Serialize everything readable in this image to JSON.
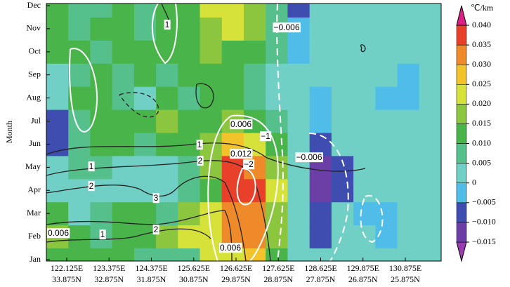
{
  "chart_data": {
    "type": "heatmap",
    "y_label": "Month",
    "y_categories": [
      "Jan",
      "Feb",
      "Mar",
      "Apr",
      "May",
      "Jun",
      "Jul",
      "Aug",
      "Sep",
      "Oct",
      "Nov",
      "Dec"
    ],
    "x_labels": [
      [
        "122.125E",
        "33.875N"
      ],
      [
        "123.375E",
        "32.875N"
      ],
      [
        "124.375E",
        "31.875N"
      ],
      [
        "125.625E",
        "30.875N"
      ],
      [
        "126.625E",
        "29.875N"
      ],
      [
        "127.625E",
        "28.875N"
      ],
      [
        "128.625E",
        "27.875N"
      ],
      [
        "129.875E",
        "26.875N"
      ],
      [
        "130.875E",
        "25.875N"
      ]
    ],
    "values": [
      [
        0.012,
        0.012,
        0.012,
        0.012,
        0.007,
        0.007,
        0.007,
        0.022,
        0.022,
        0.027,
        0.012,
        0.003,
        0.003,
        0.003,
        0.003,
        0.003,
        0.003,
        0.003
      ],
      [
        0.017,
        0.012,
        0.007,
        0.012,
        0.012,
        0.017,
        0.022,
        0.022,
        0.032,
        0.032,
        0.017,
        0.003,
        -0.007,
        0.003,
        0.003,
        -0.002,
        0.003,
        0.003
      ],
      [
        0.012,
        0.003,
        0.007,
        0.012,
        0.012,
        0.007,
        0.017,
        0.022,
        0.032,
        0.032,
        0.017,
        0.003,
        -0.007,
        0.003,
        -0.002,
        -0.002,
        0.003,
        0.003
      ],
      [
        0.003,
        0.003,
        0.003,
        0.003,
        0.003,
        0.003,
        0.007,
        0.012,
        0.037,
        0.037,
        0.022,
        0.003,
        -0.012,
        -0.007,
        0.003,
        0.003,
        0.003,
        0.003
      ],
      [
        0.003,
        0.007,
        0.007,
        0.003,
        0.003,
        0.003,
        0.007,
        0.017,
        0.037,
        0.032,
        0.017,
        0.003,
        -0.012,
        -0.007,
        0.003,
        0.003,
        0.003,
        0.003
      ],
      [
        -0.007,
        0.007,
        0.012,
        0.012,
        0.007,
        0.012,
        0.012,
        0.017,
        0.027,
        0.022,
        0.012,
        0.003,
        -0.007,
        0.003,
        0.003,
        0.003,
        0.003,
        0.003
      ],
      [
        -0.007,
        0.007,
        0.012,
        0.012,
        0.012,
        0.017,
        0.012,
        0.012,
        0.017,
        0.012,
        0.007,
        0.003,
        -0.002,
        0.003,
        0.003,
        0.003,
        0.003,
        0.003
      ],
      [
        0.003,
        0.012,
        0.012,
        0.007,
        0.003,
        0.012,
        0.007,
        0.012,
        0.012,
        0.007,
        0.003,
        0.003,
        -0.002,
        0.003,
        0.003,
        -0.002,
        -0.002,
        0.003
      ],
      [
        0.003,
        0.007,
        0.012,
        0.007,
        0.012,
        0.007,
        0.012,
        0.012,
        0.012,
        0.007,
        0.003,
        0.003,
        0.003,
        0.003,
        0.003,
        0.003,
        -0.002,
        0.003
      ],
      [
        0.012,
        0.012,
        0.007,
        0.012,
        0.012,
        0.012,
        0.012,
        0.017,
        0.012,
        0.012,
        0.007,
        -0.002,
        0.003,
        0.003,
        0.003,
        0.003,
        0.003,
        0.003
      ],
      [
        0.012,
        0.007,
        0.012,
        0.012,
        0.007,
        0.012,
        0.012,
        0.017,
        0.022,
        0.017,
        0.007,
        -0.002,
        0.003,
        0.003,
        0.003,
        0.003,
        0.003,
        0.003
      ],
      [
        0.012,
        0.007,
        0.007,
        0.012,
        0.007,
        0.012,
        0.012,
        0.022,
        0.022,
        0.017,
        0.007,
        -0.007,
        0.003,
        0.003,
        0.003,
        0.003,
        0.003,
        0.003
      ]
    ],
    "colorbar_unit": "℃/km",
    "colorbar_ticks": [
      {
        "value": -0.015,
        "label": "−0.015"
      },
      {
        "value": -0.01,
        "label": "−0.010"
      },
      {
        "value": -0.005,
        "label": "−0.005"
      },
      0,
      0.005,
      {
        "value": 0.01,
        "label": "0.010"
      },
      0.015,
      {
        "value": 0.02,
        "label": "0.020"
      },
      0.025,
      {
        "value": 0.03,
        "label": "0.030"
      },
      0.035,
      {
        "value": 0.04,
        "label": "0.040"
      }
    ],
    "colors": [
      "#9a3cae",
      "#6b3fa6",
      "#3f4cb0",
      "#4fbde8",
      "#70d0c6",
      "#55c08c",
      "#48b44a",
      "#8cc63f",
      "#d6e23a",
      "#f2c32b",
      "#ef8a2a",
      "#e8402a",
      "#dc2088"
    ],
    "annotations": [
      "1",
      "−0.006",
      "0.006",
      "−1",
      "1",
      "2",
      "0.012",
      "−2",
      "−0.006",
      "1",
      "2",
      "3",
      "2",
      "0.006",
      "1",
      "0.006"
    ]
  }
}
